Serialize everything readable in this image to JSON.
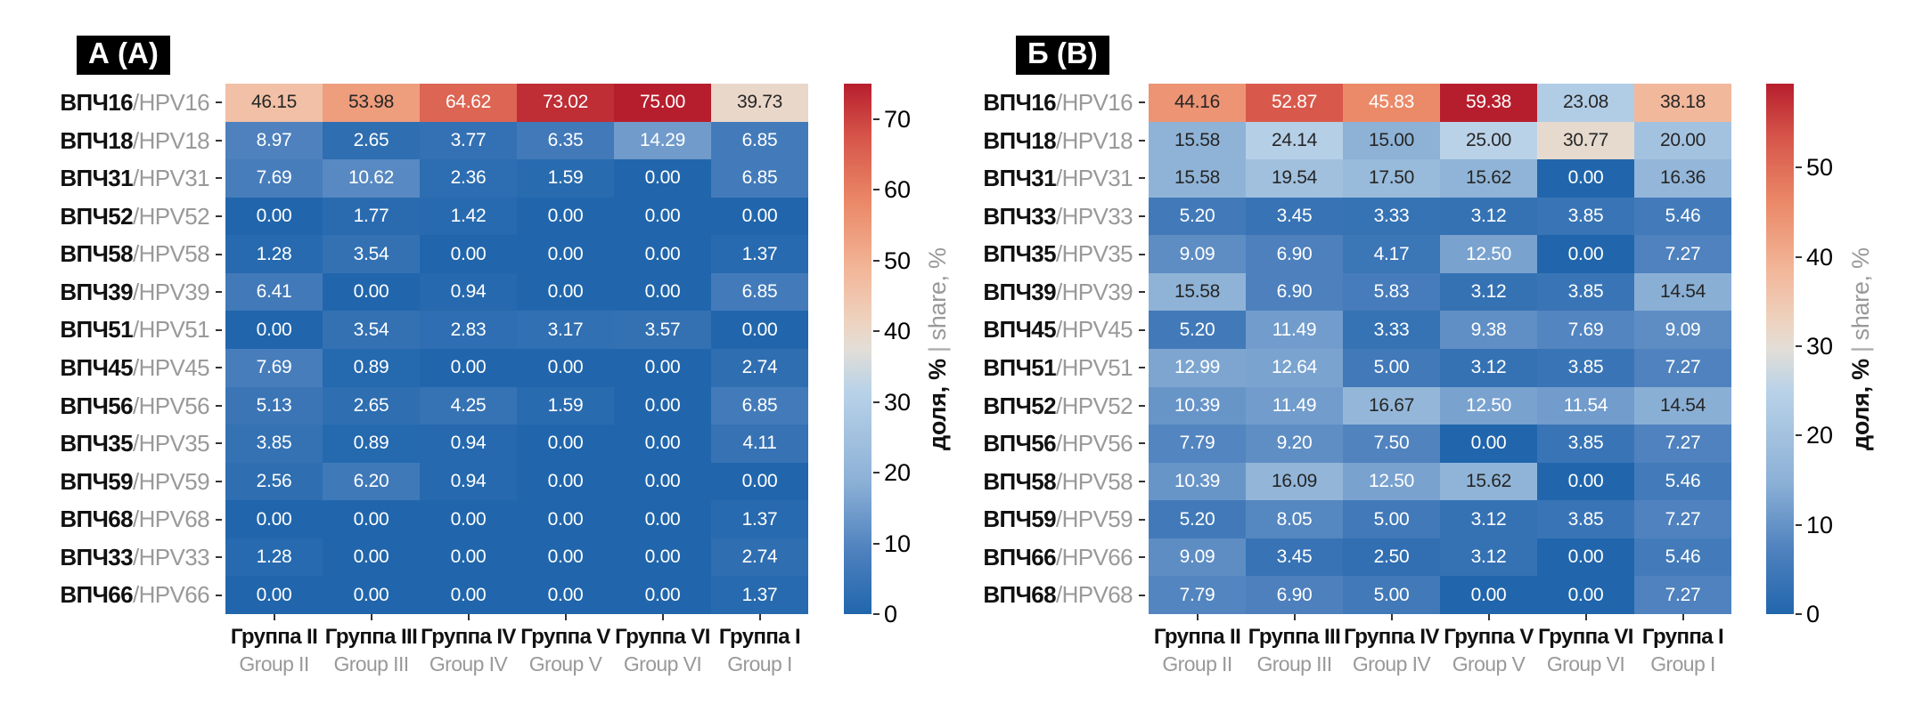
{
  "chart_data": [
    {
      "type": "heatmap",
      "panel_label": "А (A)",
      "rows": [
        {
          "ru": "ВПЧ16",
          "en": "HPV16"
        },
        {
          "ru": "ВПЧ18",
          "en": "HPV18"
        },
        {
          "ru": "ВПЧ31",
          "en": "HPV31"
        },
        {
          "ru": "ВПЧ52",
          "en": "HPV52"
        },
        {
          "ru": "ВПЧ58",
          "en": "HPV58"
        },
        {
          "ru": "ВПЧ39",
          "en": "HPV39"
        },
        {
          "ru": "ВПЧ51",
          "en": "HPV51"
        },
        {
          "ru": "ВПЧ45",
          "en": "HPV45"
        },
        {
          "ru": "ВПЧ56",
          "en": "HPV56"
        },
        {
          "ru": "ВПЧ35",
          "en": "HPV35"
        },
        {
          "ru": "ВПЧ59",
          "en": "HPV59"
        },
        {
          "ru": "ВПЧ68",
          "en": "HPV68"
        },
        {
          "ru": "ВПЧ33",
          "en": "HPV33"
        },
        {
          "ru": "ВПЧ66",
          "en": "HPV66"
        }
      ],
      "columns": [
        {
          "ru": "Группа II",
          "en": "Group II"
        },
        {
          "ru": "Группа III",
          "en": "Group III"
        },
        {
          "ru": "Группа IV",
          "en": "Group IV"
        },
        {
          "ru": "Группа V",
          "en": "Group V"
        },
        {
          "ru": "Группа VI",
          "en": "Group VI"
        },
        {
          "ru": "Группа I",
          "en": "Group I"
        }
      ],
      "values": [
        [
          46.15,
          53.98,
          64.62,
          73.02,
          75.0,
          39.73
        ],
        [
          8.97,
          2.65,
          3.77,
          6.35,
          14.29,
          6.85
        ],
        [
          7.69,
          10.62,
          2.36,
          1.59,
          0.0,
          6.85
        ],
        [
          0.0,
          1.77,
          1.42,
          0.0,
          0.0,
          0.0
        ],
        [
          1.28,
          3.54,
          0.0,
          0.0,
          0.0,
          1.37
        ],
        [
          6.41,
          0.0,
          0.94,
          0.0,
          0.0,
          6.85
        ],
        [
          0.0,
          3.54,
          2.83,
          3.17,
          3.57,
          0.0
        ],
        [
          7.69,
          0.89,
          0.0,
          0.0,
          0.0,
          2.74
        ],
        [
          5.13,
          2.65,
          4.25,
          1.59,
          0.0,
          6.85
        ],
        [
          3.85,
          0.89,
          0.94,
          0.0,
          0.0,
          4.11
        ],
        [
          2.56,
          6.2,
          0.94,
          0.0,
          0.0,
          0.0
        ],
        [
          0.0,
          0.0,
          0.0,
          0.0,
          0.0,
          1.37
        ],
        [
          1.28,
          0.0,
          0.0,
          0.0,
          0.0,
          2.74
        ],
        [
          0.0,
          0.0,
          0.0,
          0.0,
          0.0,
          1.37
        ]
      ],
      "vmin": 0,
      "vmax": 75.0,
      "colorbar": {
        "ticks": [
          0,
          10,
          20,
          30,
          40,
          50,
          60,
          70
        ],
        "label_ru": "доля, %",
        "label_sep": "|",
        "label_en": "share, %"
      }
    },
    {
      "type": "heatmap",
      "panel_label": "Б (B)",
      "rows": [
        {
          "ru": "ВПЧ16",
          "en": "HPV16"
        },
        {
          "ru": "ВПЧ18",
          "en": "HPV18"
        },
        {
          "ru": "ВПЧ31",
          "en": "HPV31"
        },
        {
          "ru": "ВПЧ33",
          "en": "HPV33"
        },
        {
          "ru": "ВПЧ35",
          "en": "HPV35"
        },
        {
          "ru": "ВПЧ39",
          "en": "HPV39"
        },
        {
          "ru": "ВПЧ45",
          "en": "HPV45"
        },
        {
          "ru": "ВПЧ51",
          "en": "HPV51"
        },
        {
          "ru": "ВПЧ52",
          "en": "HPV52"
        },
        {
          "ru": "ВПЧ56",
          "en": "HPV56"
        },
        {
          "ru": "ВПЧ58",
          "en": "HPV58"
        },
        {
          "ru": "ВПЧ59",
          "en": "HPV59"
        },
        {
          "ru": "ВПЧ66",
          "en": "HPV66"
        },
        {
          "ru": "ВПЧ68",
          "en": "HPV68"
        }
      ],
      "columns": [
        {
          "ru": "Группа II",
          "en": "Group II"
        },
        {
          "ru": "Группа III",
          "en": "Group III"
        },
        {
          "ru": "Группа IV",
          "en": "Group IV"
        },
        {
          "ru": "Группа V",
          "en": "Group V"
        },
        {
          "ru": "Группа VI",
          "en": "Group VI"
        },
        {
          "ru": "Группа I",
          "en": "Group I"
        }
      ],
      "values": [
        [
          44.16,
          52.87,
          45.83,
          59.38,
          23.08,
          38.18
        ],
        [
          15.58,
          24.14,
          15.0,
          25.0,
          30.77,
          20.0
        ],
        [
          15.58,
          19.54,
          17.5,
          15.62,
          0.0,
          16.36
        ],
        [
          5.2,
          3.45,
          3.33,
          3.12,
          3.85,
          5.46
        ],
        [
          9.09,
          6.9,
          4.17,
          12.5,
          0.0,
          7.27
        ],
        [
          15.58,
          6.9,
          5.83,
          3.12,
          3.85,
          14.54
        ],
        [
          5.2,
          11.49,
          3.33,
          9.38,
          7.69,
          9.09
        ],
        [
          12.99,
          12.64,
          5.0,
          3.12,
          3.85,
          7.27
        ],
        [
          10.39,
          11.49,
          16.67,
          12.5,
          11.54,
          14.54
        ],
        [
          7.79,
          9.2,
          7.5,
          0.0,
          3.85,
          7.27
        ],
        [
          10.39,
          16.09,
          12.5,
          15.62,
          0.0,
          5.46
        ],
        [
          5.2,
          8.05,
          5.0,
          3.12,
          3.85,
          7.27
        ],
        [
          9.09,
          3.45,
          2.5,
          3.12,
          0.0,
          5.46
        ],
        [
          7.79,
          6.9,
          5.0,
          0.0,
          0.0,
          7.27
        ]
      ],
      "vmin": 0,
      "vmax": 59.38,
      "colorbar": {
        "ticks": [
          0,
          10,
          20,
          30,
          40,
          50
        ],
        "label_ru": "доля, %",
        "label_sep": "|",
        "label_en": "share, %"
      }
    }
  ],
  "style": {
    "cmap_stops": [
      [
        0.0,
        "#2166ac"
      ],
      [
        0.12,
        "#4e81be"
      ],
      [
        0.25,
        "#8cb1d6"
      ],
      [
        0.42,
        "#b9d2e8"
      ],
      [
        0.5,
        "#e2ded7"
      ],
      [
        0.55,
        "#eed3c0"
      ],
      [
        0.65,
        "#f2b698"
      ],
      [
        0.78,
        "#ea8766"
      ],
      [
        0.9,
        "#d6554a"
      ],
      [
        1.0,
        "#b71e2d"
      ]
    ],
    "annotation_dark_text": "#262626",
    "annotation_light_text": "#ffffff",
    "title_bg": "#000000",
    "title_fg": "#ffffff",
    "label_primary": "#111111",
    "label_secondary": "#999999"
  }
}
